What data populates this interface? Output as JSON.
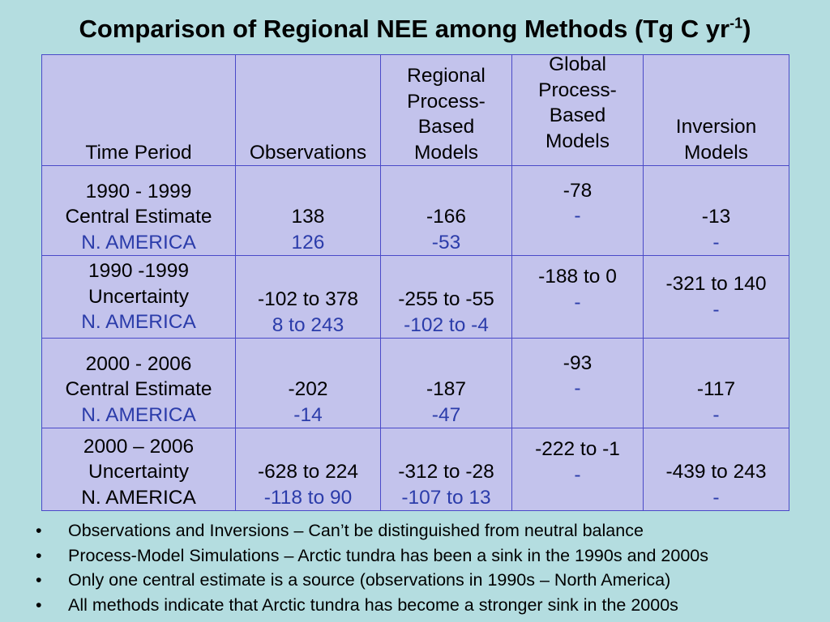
{
  "title": {
    "text": "Comparison of Regional NEE among Methods (Tg C yr",
    "superscript": "-1",
    "close": ")"
  },
  "table": {
    "headers": [
      [
        "Time Period"
      ],
      [
        "Observations"
      ],
      [
        "Regional",
        "Process-",
        "Based",
        "Models"
      ],
      [
        "Global",
        "Process-",
        "Based",
        "Models"
      ],
      [
        "Inversion",
        "Models"
      ]
    ],
    "rows": [
      {
        "period": [
          "1990 - 1999",
          "Central Estimate",
          "N. AMERICA"
        ],
        "observations": [
          "138",
          "126"
        ],
        "regional": [
          "-166",
          "-53"
        ],
        "global": [
          "-78",
          "-"
        ],
        "inversion": [
          "-13",
          "-"
        ]
      },
      {
        "period": [
          "1990 -1999",
          "Uncertainty",
          "N. AMERICA"
        ],
        "observations": [
          "-102 to 378",
          "8 to 243"
        ],
        "regional": [
          "-255 to -55",
          "-102 to -4"
        ],
        "global": [
          "-188 to 0",
          "-"
        ],
        "inversion": [
          "-321 to 140",
          "-"
        ]
      },
      {
        "period": [
          "2000 - 2006",
          "Central Estimate",
          "N. AMERICA"
        ],
        "observations": [
          "-202",
          "-14"
        ],
        "regional": [
          "-187",
          "-47"
        ],
        "global": [
          "-93",
          "-"
        ],
        "inversion": [
          "-117",
          "-"
        ]
      },
      {
        "period": [
          "2000 – 2006",
          "Uncertainty",
          "N. AMERICA"
        ],
        "observations": [
          "-628 to 224",
          "-118 to 90"
        ],
        "regional": [
          "-312 to -28",
          "-107 to 13"
        ],
        "global": [
          "-222 to -1",
          "-"
        ],
        "inversion": [
          "-439 to 243",
          "-"
        ]
      }
    ]
  },
  "bullets": [
    "Observations and Inversions – Can’t be distinguished from neutral balance",
    "Process-Model Simulations – Arctic tundra has been a sink in the 1990s and 2000s",
    "Only one central estimate is a source (observations in 1990s – North America)",
    "All methods indicate that Arctic tundra has become a stronger sink in the 2000s"
  ],
  "bullet_symbol": "•",
  "colors": {
    "background": "#b4dde0",
    "table_fill": "#c3c3ec",
    "border": "#4a4ac8",
    "na_text": "#2b3caa"
  }
}
